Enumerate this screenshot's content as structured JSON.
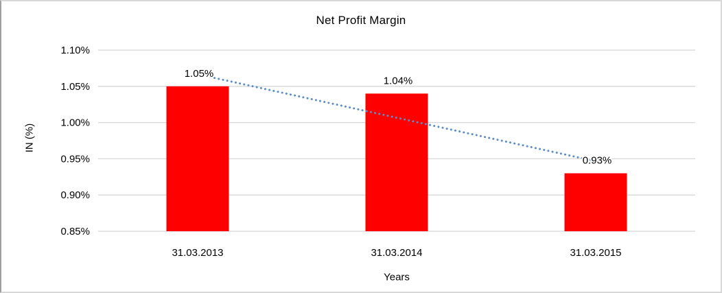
{
  "window": {
    "background": "#FFFFFF",
    "border_color": "#D8D8D8",
    "border_left_color": "#9E9E9E"
  },
  "colors": {
    "gridline": "#D7D7D7",
    "text": "#000000",
    "bar": "#FF0000",
    "trendline": "#5A8EC9"
  },
  "chart_data": {
    "type": "bar",
    "title": "Net Profit Margin",
    "xlabel": "Years",
    "ylabel": "IN (%)",
    "categories": [
      "31.03.2013",
      "31.03.2014",
      "31.03.2015"
    ],
    "values": [
      1.05,
      1.04,
      0.93
    ],
    "data_labels": [
      "1.05%",
      "1.04%",
      "0.93%"
    ],
    "ylim": [
      0.85,
      1.1
    ],
    "ytick_step": 0.05,
    "ytick_labels": [
      "0.85%",
      "0.90%",
      "0.95%",
      "1.00%",
      "1.05%",
      "1.10%"
    ],
    "grid": "horizontal",
    "legend": "none",
    "bar_color": "#FF0000",
    "trendline": {
      "type": "linear",
      "style": "dotted",
      "color": "#5A8EC9"
    }
  }
}
